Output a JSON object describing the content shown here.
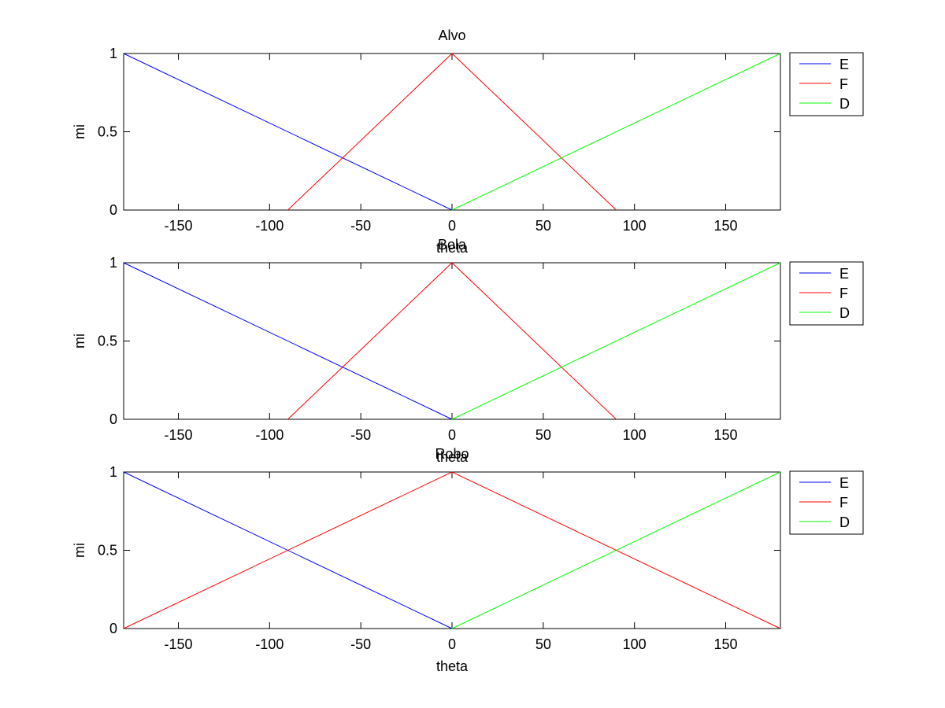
{
  "chart_data": [
    {
      "type": "line",
      "title": "Alvo",
      "xlabel": "theta",
      "ylabel": "mi",
      "xlim": [
        -180,
        180
      ],
      "ylim": [
        0,
        1
      ],
      "xticks": [
        -150,
        -100,
        -50,
        0,
        50,
        100,
        150
      ],
      "yticks": [
        0,
        0.5,
        1
      ],
      "grid": false,
      "legend_position": "outside-right",
      "series": [
        {
          "name": "E",
          "color": "#0000ff",
          "x": [
            -180,
            0
          ],
          "y": [
            1,
            0
          ]
        },
        {
          "name": "F",
          "color": "#ff0000",
          "x": [
            -90,
            0,
            90
          ],
          "y": [
            0,
            1,
            0
          ]
        },
        {
          "name": "D",
          "color": "#00ff00",
          "x": [
            0,
            180
          ],
          "y": [
            0,
            1
          ]
        }
      ]
    },
    {
      "type": "line",
      "title": "Bola",
      "xlabel": "theta",
      "ylabel": "mi",
      "xlim": [
        -180,
        180
      ],
      "ylim": [
        0,
        1
      ],
      "xticks": [
        -150,
        -100,
        -50,
        0,
        50,
        100,
        150
      ],
      "yticks": [
        0,
        0.5,
        1
      ],
      "grid": false,
      "legend_position": "outside-right",
      "series": [
        {
          "name": "E",
          "color": "#0000ff",
          "x": [
            -180,
            0
          ],
          "y": [
            1,
            0
          ]
        },
        {
          "name": "F",
          "color": "#ff0000",
          "x": [
            -90,
            0,
            90
          ],
          "y": [
            0,
            1,
            0
          ]
        },
        {
          "name": "D",
          "color": "#00ff00",
          "x": [
            0,
            180
          ],
          "y": [
            0,
            1
          ]
        }
      ]
    },
    {
      "type": "line",
      "title": "Robo",
      "xlabel": "theta",
      "ylabel": "mi",
      "xlim": [
        -180,
        180
      ],
      "ylim": [
        0,
        1
      ],
      "xticks": [
        -150,
        -100,
        -50,
        0,
        50,
        100,
        150
      ],
      "yticks": [
        0,
        0.5,
        1
      ],
      "grid": false,
      "legend_position": "outside-right",
      "series": [
        {
          "name": "E",
          "color": "#0000ff",
          "x": [
            -180,
            0
          ],
          "y": [
            1,
            0
          ]
        },
        {
          "name": "F",
          "color": "#ff0000",
          "x": [
            -180,
            0,
            180
          ],
          "y": [
            0,
            1,
            0
          ]
        },
        {
          "name": "D",
          "color": "#00ff00",
          "x": [
            0,
            180
          ],
          "y": [
            0,
            1
          ]
        }
      ]
    }
  ]
}
